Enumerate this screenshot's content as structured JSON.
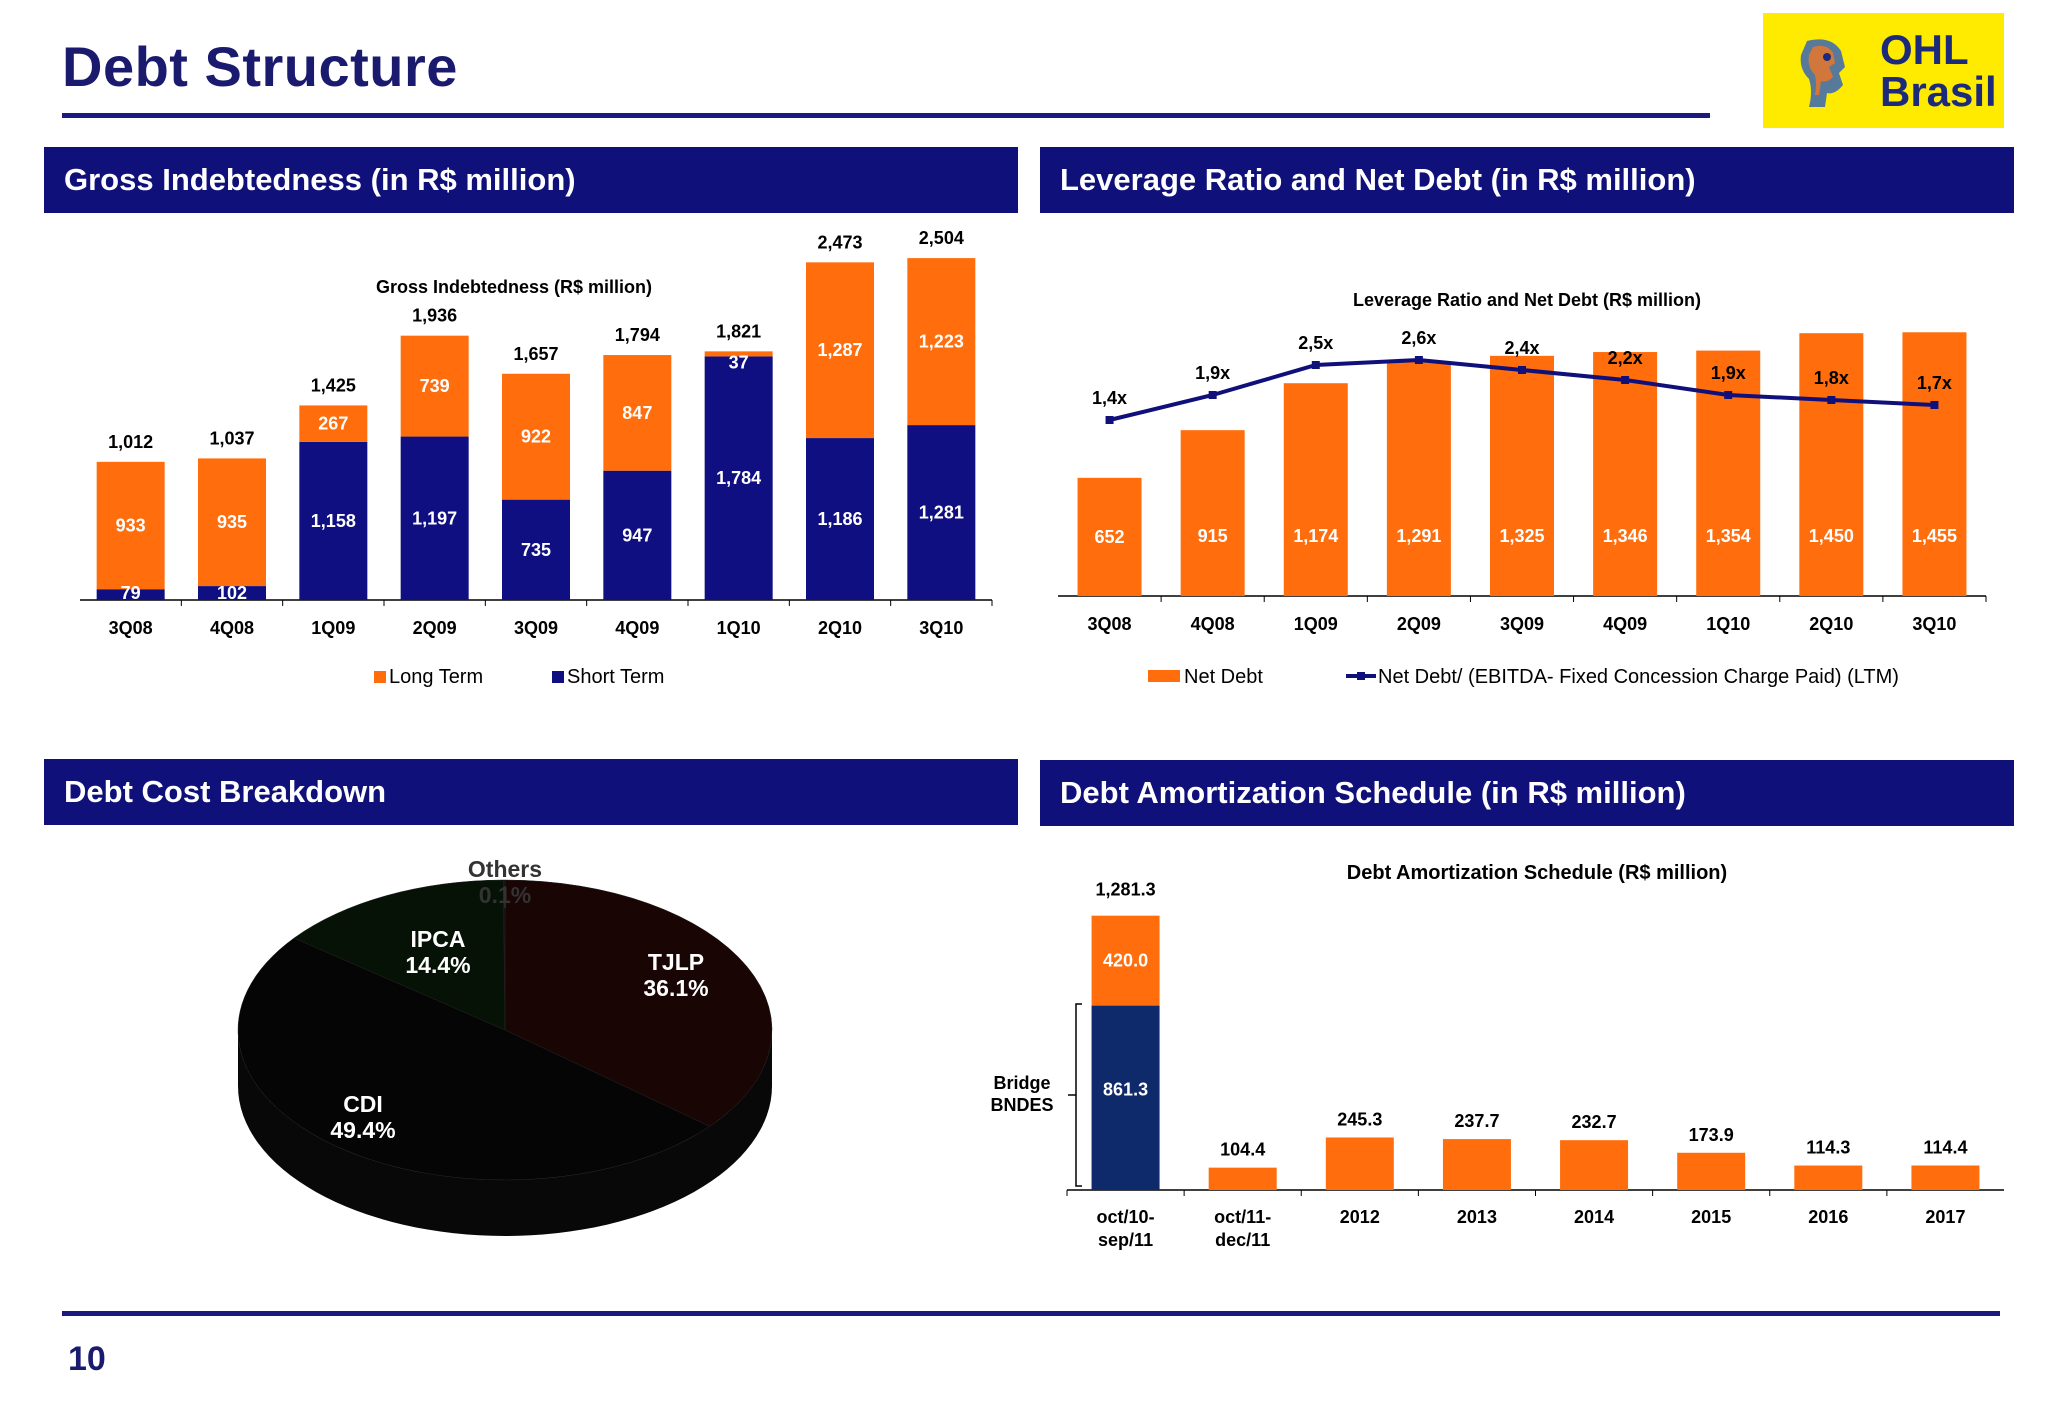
{
  "slide": {
    "title": "Debt Structure",
    "page_number": "10",
    "logo": {
      "line1": "OHL",
      "line2": "Brasil"
    }
  },
  "panels": {
    "gross": "Gross Indebtedness  (in R$ million)",
    "leverage": "Leverage Ratio and Net Debt (in R$ million)",
    "cost": "Debt Cost Breakdown",
    "amort": "Debt Amortization Schedule (in R$ million)"
  },
  "colors": {
    "navy": "#10107a",
    "orange": "#ff6d0d",
    "bar_navy": "#0f0f82",
    "amort_navy": "#0f2a6b"
  },
  "chart_data": [
    {
      "id": "gross",
      "type": "bar",
      "stacked": true,
      "title": "Gross Indebtedness (R$ million)",
      "categories": [
        "3Q08",
        "4Q08",
        "1Q09",
        "2Q09",
        "3Q09",
        "4Q09",
        "1Q10",
        "2Q10",
        "3Q10"
      ],
      "series": [
        {
          "name": "Short Term",
          "color": "#0f0f82",
          "values": [
            79,
            102,
            1158,
            1197,
            735,
            947,
            1784,
            1186,
            1281
          ],
          "labels": [
            "79",
            "102",
            "1,158",
            "1,197",
            "735",
            "947",
            "1,784",
            "1,186",
            "1,281"
          ]
        },
        {
          "name": "Long Term",
          "color": "#ff6d0d",
          "values": [
            933,
            935,
            267,
            739,
            922,
            847,
            37,
            1287,
            1223
          ],
          "labels": [
            "933",
            "935",
            "267",
            "739",
            "922",
            "847",
            "37",
            "1,287",
            "1,223"
          ]
        }
      ],
      "totals": [
        "1,012",
        "1,037",
        "1,425",
        "1,936",
        "1,657",
        "1,794",
        "1,821",
        "2,473",
        "2,504"
      ],
      "total_values": [
        1012,
        1037,
        1425,
        1936,
        1657,
        1794,
        1821,
        2473,
        2504
      ],
      "legend": [
        "Long Term",
        "Short Term"
      ],
      "legend_position": "bottom",
      "ylim": [
        0,
        2600
      ]
    },
    {
      "id": "leverage",
      "type": "bar",
      "title": "Leverage Ratio and Net Debt (R$ million)",
      "categories": [
        "3Q08",
        "4Q08",
        "1Q09",
        "2Q09",
        "3Q09",
        "4Q09",
        "1Q10",
        "2Q10",
        "3Q10"
      ],
      "series": [
        {
          "name": "Net Debt",
          "type": "bar",
          "color": "#ff6d0d",
          "values": [
            652,
            915,
            1174,
            1291,
            1325,
            1346,
            1354,
            1450,
            1455
          ],
          "labels": [
            "652",
            "915",
            "1,174",
            "1,291",
            "1,325",
            "1,346",
            "1,354",
            "1,450",
            "1,455"
          ]
        },
        {
          "name": "Net Debt/ (EBITDA- Fixed Concession Charge Paid)  (LTM)",
          "type": "line",
          "color": "#10107a",
          "values": [
            1.4,
            1.9,
            2.5,
            2.6,
            2.4,
            2.2,
            1.9,
            1.8,
            1.7
          ],
          "labels": [
            "1,4x",
            "1,9x",
            "2,5x",
            "2,6x",
            "2,4x",
            "2,2x",
            "1,9x",
            "1,8x",
            "1,7x"
          ]
        }
      ],
      "legend": [
        "Net Debt",
        "Net Debt/ (EBITDA- Fixed Concession Charge Paid)  (LTM)"
      ],
      "legend_position": "bottom",
      "ylim": [
        0,
        1600
      ],
      "ylim_secondary": [
        0,
        3.2
      ]
    },
    {
      "id": "cost",
      "type": "pie",
      "style": "3d",
      "slices": [
        {
          "label": "TJLP",
          "value": 36.1,
          "text": "36.1%",
          "color": "#1a0505"
        },
        {
          "label": "CDI",
          "value": 49.4,
          "text": "49.4%",
          "color": "#050505"
        },
        {
          "label": "IPCA",
          "value": 14.4,
          "text": "14.4%",
          "color": "#061206"
        },
        {
          "label": "Others",
          "value": 0.1,
          "text": "0.1%",
          "color": "#101010"
        }
      ]
    },
    {
      "id": "amort",
      "type": "bar",
      "stacked": true,
      "title": "Debt Amortization Schedule (R$ million)",
      "categories": [
        [
          "oct/10-",
          "sep/11"
        ],
        [
          "oct/11-",
          "dec/11"
        ],
        [
          "2012"
        ],
        [
          "2013"
        ],
        [
          "2014"
        ],
        [
          "2015"
        ],
        [
          "2016"
        ],
        [
          "2017"
        ]
      ],
      "series": [
        {
          "name": "Bridge BNDES",
          "color": "#0f2a6b",
          "values": [
            861.3,
            0,
            0,
            0,
            0,
            0,
            0,
            0
          ],
          "labels": [
            "861.3",
            "",
            "",
            "",
            "",
            "",
            "",
            ""
          ]
        },
        {
          "name": "",
          "color": "#ff6d0d",
          "values": [
            420.0,
            104.4,
            245.3,
            237.7,
            232.7,
            173.9,
            114.3,
            114.4
          ],
          "labels": [
            "420.0",
            "104.4",
            "245.3",
            "237.7",
            "232.7",
            "173.9",
            "114.3",
            "114.4"
          ]
        }
      ],
      "first_total": "1,281.3",
      "bracket_label": [
        "Bridge",
        "BNDES"
      ],
      "ylim": [
        0,
        1400
      ]
    }
  ]
}
